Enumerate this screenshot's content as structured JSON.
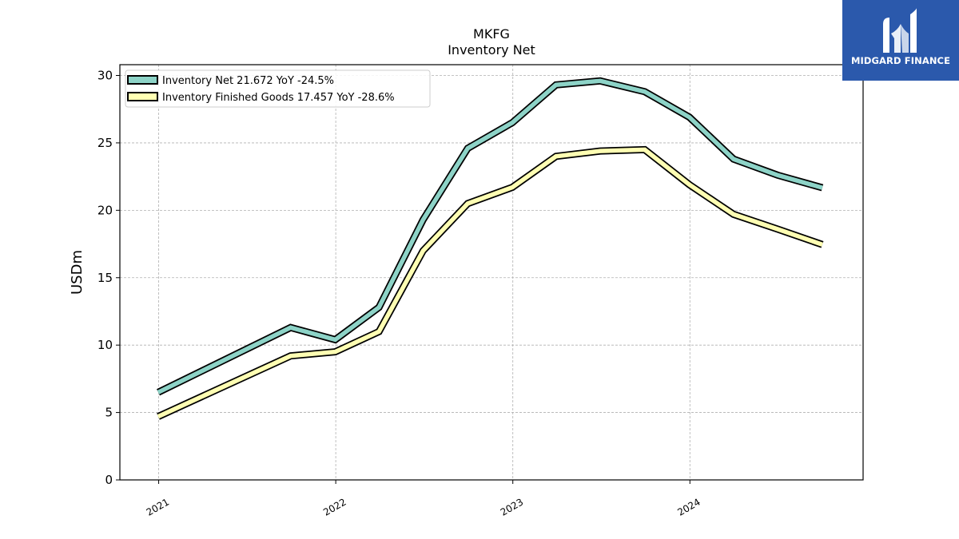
{
  "chart_data": {
    "type": "line",
    "title": "MKFG",
    "subtitle": "Inventory Net",
    "ylabel": "USDm",
    "ylim": [
      0,
      30.8
    ],
    "yticks": [
      0,
      5,
      10,
      15,
      20,
      25,
      30
    ],
    "xlim": [
      "2020-10-13",
      "2024-12-23"
    ],
    "xticks": [
      "2021",
      "2022",
      "2023",
      "2024"
    ],
    "grid": true,
    "legend_position": "top-left",
    "series": [
      {
        "name": "Inventory Net  21.672 YoY -24.5%",
        "color": "#8dd3c7",
        "x": [
          "2020-12-31",
          "2021-09-30",
          "2021-12-31",
          "2022-03-31",
          "2022-06-30",
          "2022-09-30",
          "2022-12-31",
          "2023-03-31",
          "2023-06-30",
          "2023-09-30",
          "2023-12-31",
          "2024-03-31",
          "2024-06-30",
          "2024-09-30"
        ],
        "values": [
          6.5,
          11.3,
          10.4,
          12.8,
          19.3,
          24.6,
          26.5,
          29.3,
          29.6,
          28.8,
          26.9,
          23.8,
          22.6,
          21.672
        ]
      },
      {
        "name": "Inventory Finished Goods  17.457 YoY -28.6%",
        "color": "#ffffb3",
        "x": [
          "2020-12-31",
          "2021-09-30",
          "2021-12-31",
          "2022-03-31",
          "2022-06-30",
          "2022-09-30",
          "2022-12-31",
          "2023-03-31",
          "2023-06-30",
          "2023-09-30",
          "2023-12-31",
          "2024-03-31",
          "2024-06-30",
          "2024-09-30"
        ],
        "values": [
          4.7,
          9.2,
          9.5,
          11.0,
          17.0,
          20.5,
          21.7,
          24.0,
          24.4,
          24.5,
          21.9,
          19.7,
          18.6,
          17.457
        ]
      }
    ]
  },
  "logo": {
    "text": "MIDGARD FINANCE",
    "icon": "midgard-logo-icon",
    "background": "#2b59ac"
  }
}
